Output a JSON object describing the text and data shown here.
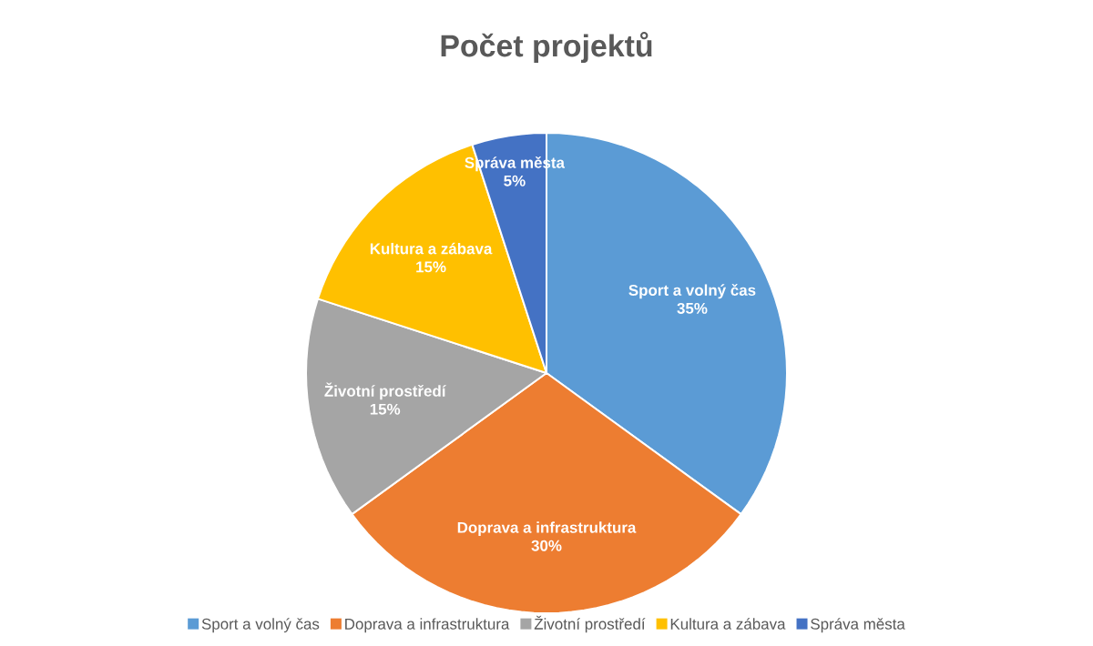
{
  "chart_data": {
    "type": "pie",
    "title": "Počet projektů",
    "categories": [
      "Sport a volný čas",
      "Doprava a infrastruktura",
      "Životní prostředí",
      "Kultura a zábava",
      "Správa města"
    ],
    "values": [
      35,
      30,
      15,
      15,
      5
    ],
    "value_labels": [
      "35%",
      "30%",
      "15%",
      "15%",
      "5%"
    ],
    "colors": [
      "#5b9bd5",
      "#ed7d31",
      "#a5a5a5",
      "#ffc000",
      "#4472c4"
    ],
    "legend": "bottom"
  }
}
